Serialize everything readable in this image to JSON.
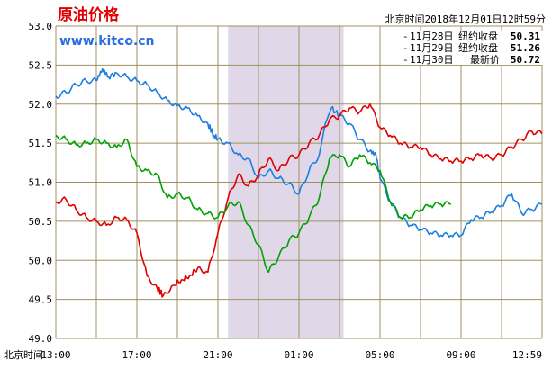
{
  "header": {
    "title": "原油价格",
    "site": "www.kitco.cn",
    "timestamp": "北京时间2018年12月01日12时59分"
  },
  "colors": {
    "c1": "#1a7fe0",
    "c2": "#e00000",
    "c3": "#00a000",
    "title": "#e00000",
    "site": "#2a6de0",
    "grid": "#a09060",
    "band": "#e0d8e8"
  },
  "legend": [
    {
      "date": "11月28日",
      "label": "纽约收盘",
      "value": "50.31"
    },
    {
      "date": "11月29日",
      "label": "纽约收盘",
      "value": "51.26"
    },
    {
      "date": "11月30日",
      "label": "最新价",
      "value": "50.72"
    }
  ],
  "chart_data": {
    "type": "line",
    "title": "原油价格",
    "xlabel": "北京时间",
    "ylabel": "",
    "ylim": [
      49.0,
      53.0
    ],
    "yticks": [
      "53.0",
      "52.5",
      "52.0",
      "51.5",
      "51.0",
      "50.5",
      "50.0",
      "49.5",
      "49.0"
    ],
    "xticks": [
      "13:00",
      "17:00",
      "21:00",
      "01:00",
      "05:00",
      "09:00",
      "12:59"
    ],
    "x_domain_hours": [
      0,
      24
    ],
    "shaded_band_hours": [
      8.5,
      14.2
    ],
    "grid": true,
    "legend_position": "top-right",
    "series": [
      {
        "name": "11月28日",
        "values": [
          [
            0,
            52.1
          ],
          [
            0.5,
            52.15
          ],
          [
            1,
            52.25
          ],
          [
            1.5,
            52.3
          ],
          [
            2,
            52.3
          ],
          [
            2.3,
            52.45
          ],
          [
            2.6,
            52.35
          ],
          [
            3,
            52.4
          ],
          [
            3.5,
            52.35
          ],
          [
            4,
            52.3
          ],
          [
            4.5,
            52.25
          ],
          [
            5,
            52.15
          ],
          [
            5.5,
            52.05
          ],
          [
            6,
            51.98
          ],
          [
            6.5,
            51.95
          ],
          [
            7,
            51.85
          ],
          [
            7.5,
            51.75
          ],
          [
            7.8,
            51.6
          ],
          [
            8,
            51.55
          ],
          [
            8.5,
            51.5
          ],
          [
            9,
            51.35
          ],
          [
            9.5,
            51.3
          ],
          [
            10,
            51.05
          ],
          [
            10.5,
            51.15
          ],
          [
            11,
            51.05
          ],
          [
            11.5,
            50.98
          ],
          [
            12,
            50.85
          ],
          [
            12.5,
            51.15
          ],
          [
            13,
            51.35
          ],
          [
            13.3,
            51.75
          ],
          [
            13.6,
            51.95
          ],
          [
            14,
            51.85
          ],
          [
            14.5,
            51.75
          ],
          [
            15,
            51.55
          ],
          [
            15.5,
            51.4
          ],
          [
            15.8,
            51.35
          ],
          [
            16,
            51.05
          ],
          [
            16.5,
            50.75
          ],
          [
            17,
            50.55
          ],
          [
            17.5,
            50.45
          ],
          [
            18,
            50.4
          ],
          [
            18.5,
            50.35
          ],
          [
            19,
            50.32
          ],
          [
            19.5,
            50.32
          ],
          [
            20,
            50.32
          ],
          [
            20.5,
            50.52
          ],
          [
            21,
            50.55
          ],
          [
            21.5,
            50.62
          ],
          [
            22,
            50.7
          ],
          [
            22.5,
            50.85
          ],
          [
            23,
            50.6
          ],
          [
            23.5,
            50.65
          ],
          [
            24,
            50.72
          ]
        ]
      },
      {
        "name": "11月29日",
        "values": [
          [
            0,
            50.75
          ],
          [
            0.5,
            50.78
          ],
          [
            1,
            50.65
          ],
          [
            1.5,
            50.55
          ],
          [
            2,
            50.5
          ],
          [
            2.5,
            50.45
          ],
          [
            3,
            50.55
          ],
          [
            3.5,
            50.52
          ],
          [
            4,
            50.35
          ],
          [
            4.5,
            49.8
          ],
          [
            5,
            49.65
          ],
          [
            5.3,
            49.55
          ],
          [
            5.8,
            49.68
          ],
          [
            6.2,
            49.75
          ],
          [
            6.6,
            49.8
          ],
          [
            7,
            49.9
          ],
          [
            7.5,
            49.85
          ],
          [
            8,
            50.35
          ],
          [
            8.5,
            50.8
          ],
          [
            9,
            51.1
          ],
          [
            9.5,
            50.95
          ],
          [
            10,
            51.1
          ],
          [
            10.5,
            51.3
          ],
          [
            11,
            51.15
          ],
          [
            11.5,
            51.3
          ],
          [
            12,
            51.35
          ],
          [
            12.5,
            51.5
          ],
          [
            13,
            51.6
          ],
          [
            13.5,
            51.8
          ],
          [
            14,
            51.85
          ],
          [
            14.5,
            51.95
          ],
          [
            15,
            51.9
          ],
          [
            15.5,
            52.0
          ],
          [
            16,
            51.7
          ],
          [
            16.5,
            51.6
          ],
          [
            17,
            51.5
          ],
          [
            17.5,
            51.45
          ],
          [
            18,
            51.45
          ],
          [
            18.5,
            51.35
          ],
          [
            19,
            51.3
          ],
          [
            19.5,
            51.27
          ],
          [
            20,
            51.27
          ],
          [
            20.5,
            51.3
          ],
          [
            21,
            51.35
          ],
          [
            21.5,
            51.3
          ],
          [
            22,
            51.35
          ],
          [
            22.5,
            51.45
          ],
          [
            23,
            51.55
          ],
          [
            23.5,
            51.65
          ],
          [
            24,
            51.62
          ]
        ]
      },
      {
        "name": "11月30日",
        "values": [
          [
            0,
            51.6
          ],
          [
            0.5,
            51.55
          ],
          [
            1,
            51.48
          ],
          [
            1.5,
            51.5
          ],
          [
            2,
            51.55
          ],
          [
            2.5,
            51.5
          ],
          [
            3,
            51.45
          ],
          [
            3.5,
            51.55
          ],
          [
            4,
            51.2
          ],
          [
            4.5,
            51.15
          ],
          [
            5,
            51.1
          ],
          [
            5.5,
            50.8
          ],
          [
            6,
            50.85
          ],
          [
            6.5,
            50.8
          ],
          [
            7,
            50.65
          ],
          [
            7.5,
            50.6
          ],
          [
            8,
            50.55
          ],
          [
            8.5,
            50.7
          ],
          [
            9,
            50.75
          ],
          [
            9.5,
            50.45
          ],
          [
            10,
            50.2
          ],
          [
            10.5,
            49.85
          ],
          [
            11,
            50.05
          ],
          [
            11.5,
            50.25
          ],
          [
            12,
            50.35
          ],
          [
            12.5,
            50.55
          ],
          [
            13,
            50.8
          ],
          [
            13.5,
            51.3
          ],
          [
            14,
            51.35
          ],
          [
            14.5,
            51.2
          ],
          [
            15,
            51.35
          ],
          [
            15.5,
            51.25
          ],
          [
            16,
            51.15
          ],
          [
            16.5,
            50.75
          ],
          [
            17,
            50.55
          ],
          [
            17.5,
            50.55
          ],
          [
            18,
            50.65
          ],
          [
            18.5,
            50.7
          ],
          [
            19,
            50.72
          ],
          [
            19.5,
            50.72
          ]
        ]
      }
    ]
  }
}
